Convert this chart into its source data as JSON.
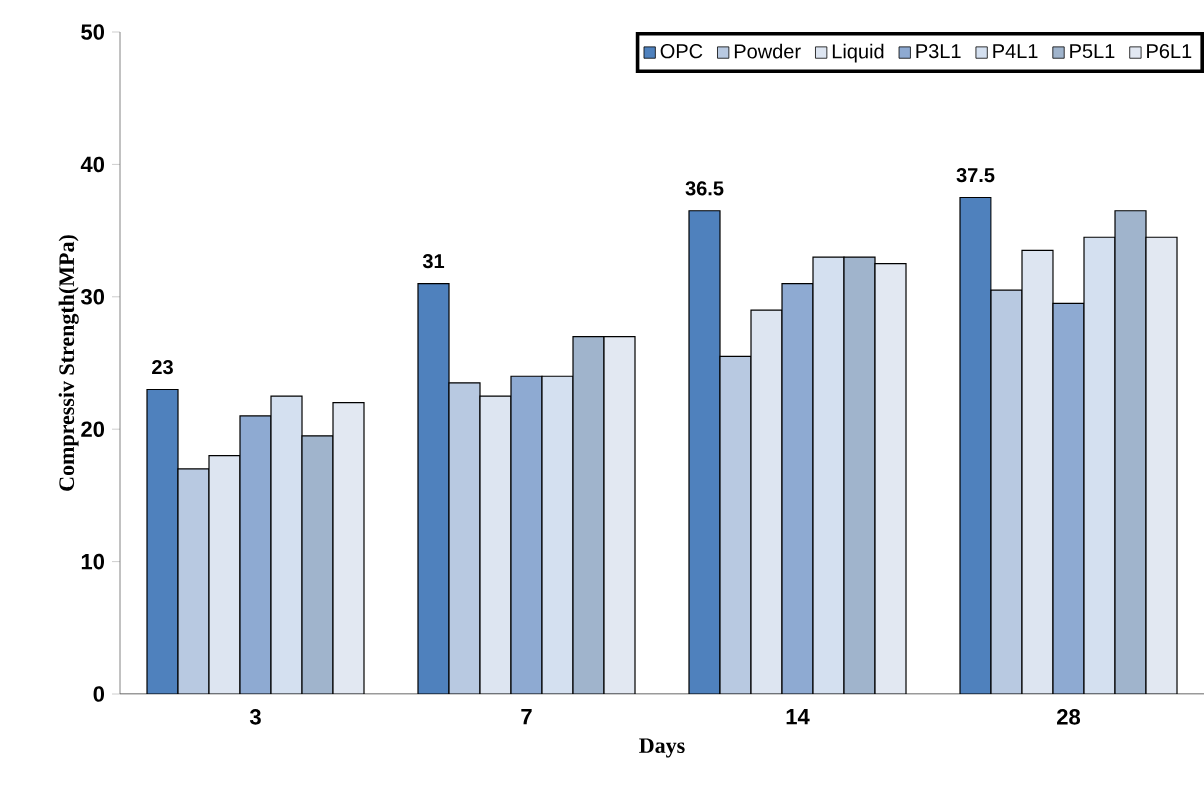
{
  "chart_data": {
    "type": "bar",
    "xlabel": "Days",
    "ylabel": "Compressiv Strength(MPa)",
    "categories": [
      "3",
      "7",
      "14",
      "28"
    ],
    "series": [
      {
        "name": "OPC",
        "color": "#4f81bd",
        "values": [
          23,
          31,
          36.5,
          37.5
        ],
        "value_labels": [
          "23",
          "31",
          "36.5",
          "37.5"
        ]
      },
      {
        "name": "Powder",
        "color": "#b8c9e1",
        "values": [
          17,
          23.5,
          25.5,
          30.5
        ]
      },
      {
        "name": "Liquid",
        "color": "#dde5f1",
        "values": [
          18,
          22.5,
          29,
          33.5
        ]
      },
      {
        "name": "P3L1",
        "color": "#8eaad2",
        "values": [
          21,
          24,
          31,
          29.5
        ]
      },
      {
        "name": "P4L1",
        "color": "#d4e0f0",
        "values": [
          22.5,
          24,
          33,
          34.5
        ]
      },
      {
        "name": "P5L1",
        "color": "#a0b4cc",
        "values": [
          19.5,
          27,
          33,
          36.5
        ]
      },
      {
        "name": "P6L1",
        "color": "#e2e8f2",
        "values": [
          22,
          27,
          32.5,
          34.5
        ]
      }
    ],
    "ylim": [
      0,
      50
    ],
    "yticks": [
      0,
      10,
      20,
      30,
      40,
      50
    ],
    "legend": "top right",
    "grid": false
  }
}
